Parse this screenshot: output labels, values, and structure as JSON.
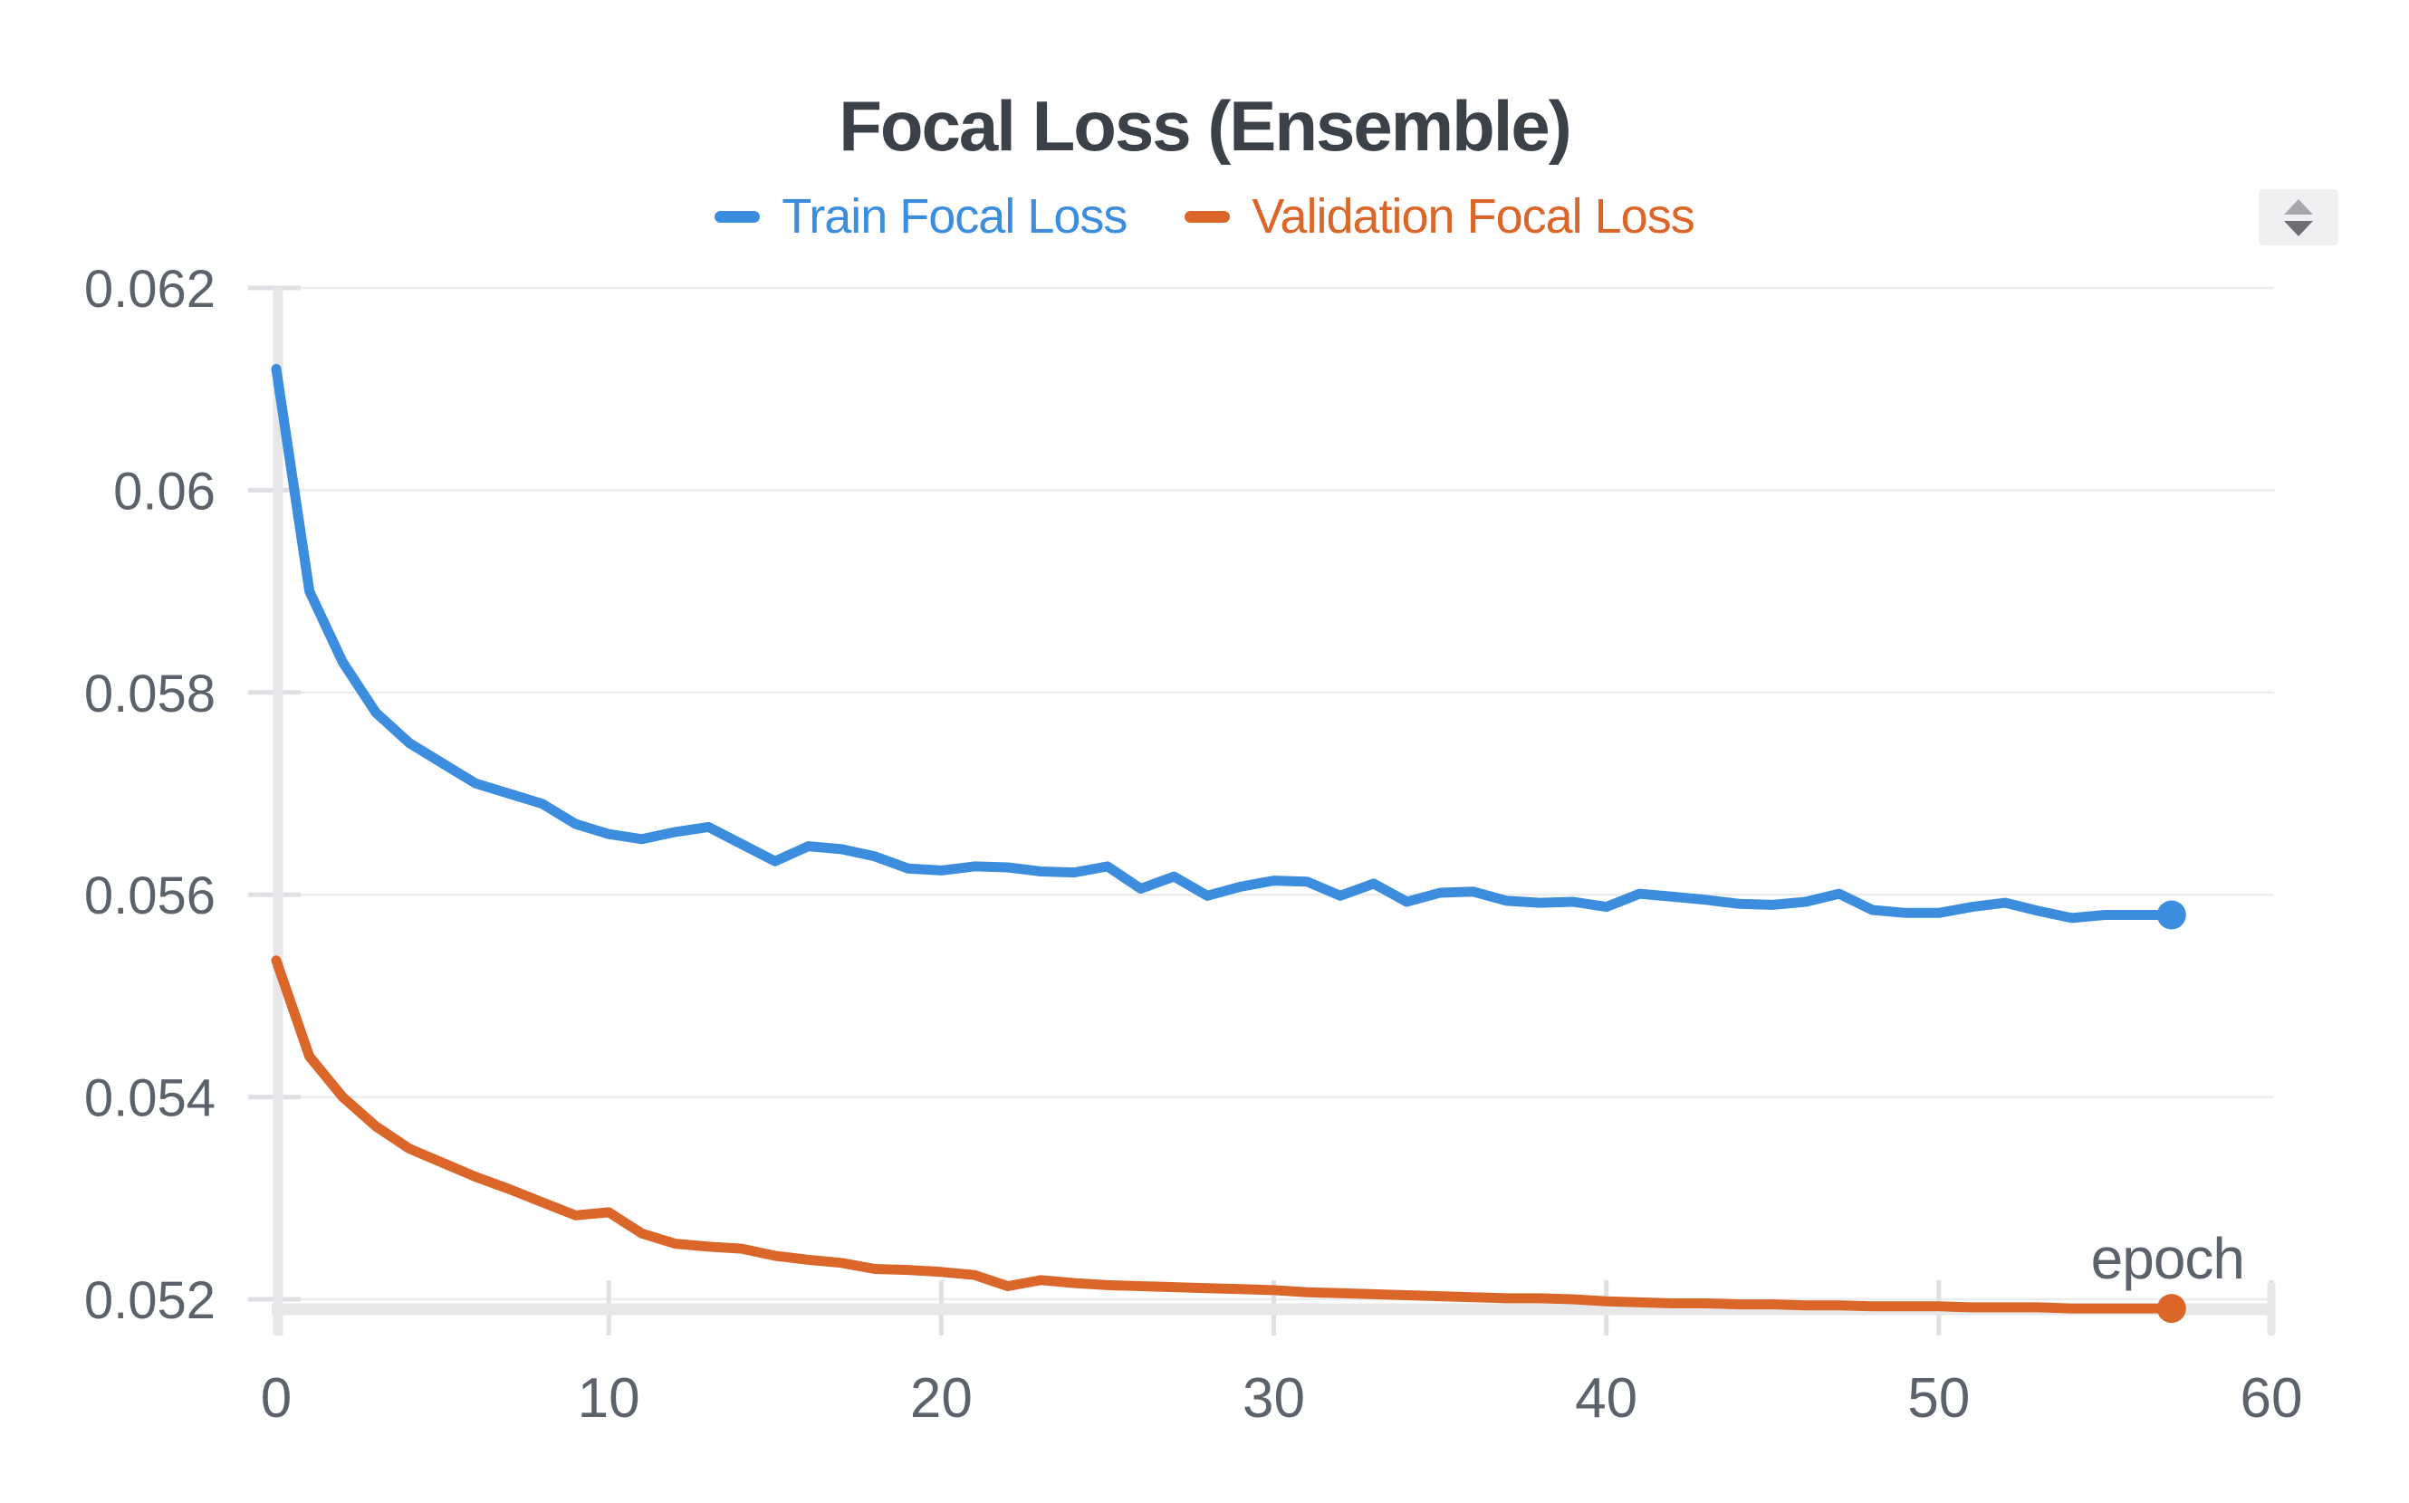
{
  "header": {
    "title": "Focal Loss (Ensemble)"
  },
  "legend": {
    "items": [
      {
        "label": "Train Focal Loss",
        "color": "#3c8dde"
      },
      {
        "label": "Validation Focal Loss",
        "color": "#db662a"
      }
    ]
  },
  "controls": {
    "sort_icon": "up-down-arrows"
  },
  "colors": {
    "title_text": "#3b4149",
    "axis_text": "#5c626c",
    "gridline": "#ebecee",
    "tick": "#dfe0e4",
    "axis_line": "#e7e7ea",
    "background": "#ffffff",
    "train": "#3c8dde",
    "validation": "#db662a"
  },
  "chart_data": {
    "type": "line",
    "title": "Focal Loss (Ensemble)",
    "xlabel": "epoch",
    "ylabel": "",
    "xlim": [
      0,
      60
    ],
    "ylim": [
      0.052,
      0.062
    ],
    "x_ticks": [
      0,
      10,
      20,
      30,
      40,
      50,
      60
    ],
    "y_ticks": [
      0.062,
      0.06,
      0.058,
      0.056,
      0.054,
      0.052
    ],
    "y_tick_labels": [
      "0.062",
      "0.06",
      "0.058",
      "0.056",
      "0.054",
      "0.052"
    ],
    "grid": true,
    "legend_position": "top-center",
    "x": [
      0,
      1,
      2,
      3,
      4,
      5,
      6,
      7,
      8,
      9,
      10,
      11,
      12,
      13,
      14,
      15,
      16,
      17,
      18,
      19,
      20,
      21,
      22,
      23,
      24,
      25,
      26,
      27,
      28,
      29,
      30,
      31,
      32,
      33,
      34,
      35,
      36,
      37,
      38,
      39,
      40,
      41,
      42,
      43,
      44,
      45,
      46,
      47,
      48,
      49,
      50,
      51,
      52,
      53,
      54,
      55,
      56,
      57
    ],
    "series": [
      {
        "name": "Train Focal Loss",
        "color": "#3c8dde",
        "endpoint_marker": true,
        "values": [
          0.0612,
          0.059,
          0.0583,
          0.0578,
          0.0575,
          0.0573,
          0.0571,
          0.057,
          0.0569,
          0.0567,
          0.0566,
          0.05655,
          0.05662,
          0.05667,
          0.0565,
          0.05633,
          0.05648,
          0.05645,
          0.05638,
          0.05626,
          0.05624,
          0.05628,
          0.05627,
          0.05623,
          0.05622,
          0.05628,
          0.05606,
          0.05618,
          0.05599,
          0.05608,
          0.05614,
          0.05613,
          0.05599,
          0.05611,
          0.05593,
          0.05602,
          0.05603,
          0.05594,
          0.05592,
          0.05593,
          0.05588,
          0.05601,
          0.05598,
          0.05595,
          0.05591,
          0.0559,
          0.05593,
          0.05601,
          0.05585,
          0.05582,
          0.05582,
          0.05588,
          0.05592,
          0.05584,
          0.05577,
          0.0558,
          0.0558,
          0.0558
        ]
      },
      {
        "name": "Validation Focal Loss",
        "color": "#db662a",
        "endpoint_marker": true,
        "values": [
          0.05535,
          0.0544,
          0.054,
          0.05371,
          0.05349,
          0.05335,
          0.05321,
          0.05309,
          0.05296,
          0.05283,
          0.05286,
          0.05265,
          0.05255,
          0.05252,
          0.0525,
          0.05243,
          0.05239,
          0.05236,
          0.0523,
          0.05229,
          0.05227,
          0.05224,
          0.05213,
          0.05219,
          0.05216,
          0.05214,
          0.05213,
          0.05212,
          0.05211,
          0.0521,
          0.05209,
          0.05207,
          0.05206,
          0.05205,
          0.05204,
          0.05203,
          0.05202,
          0.05201,
          0.05201,
          0.052,
          0.05198,
          0.05197,
          0.05196,
          0.05196,
          0.05195,
          0.05195,
          0.05194,
          0.05194,
          0.05193,
          0.05193,
          0.05193,
          0.05192,
          0.05192,
          0.05192,
          0.05191,
          0.05191,
          0.05191,
          0.05191
        ]
      }
    ]
  }
}
